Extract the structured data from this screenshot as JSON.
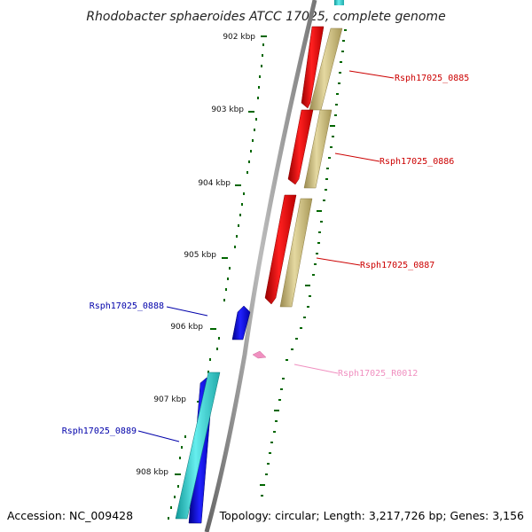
{
  "title": "Rhodobacter sphaeroides ATCC 17025, complete genome",
  "footer": {
    "accession": "Accession: NC_009428",
    "topology": "Topology: circular; Length: 3,217,726 bp; Genes: 3,156"
  },
  "ticks": [
    "902 kbp",
    "903 kbp",
    "904 kbp",
    "905 kbp",
    "906 kbp",
    "907 kbp",
    "908 kbp"
  ],
  "genes": [
    {
      "name": "Rsph17025_0885",
      "color": "#cc0000"
    },
    {
      "name": "Rsph17025_0886",
      "color": "#cc0000"
    },
    {
      "name": "Rsph17025_0887",
      "color": "#cc0000"
    },
    {
      "name": "Rsph17025_0888",
      "color": "#0000aa"
    },
    {
      "name": "Rsph17025_R0012",
      "color": "#f090c0"
    },
    {
      "name": "Rsph17025_0889",
      "color": "#0000aa"
    }
  ],
  "colors": {
    "forward_cds": "#ff0000",
    "forward_cog": "#c8b878",
    "reverse_cds": "#0000ee",
    "reverse_cog": "#22cccc",
    "rna": "#f090c0",
    "tick": "#006600",
    "backbone": "#888888"
  }
}
